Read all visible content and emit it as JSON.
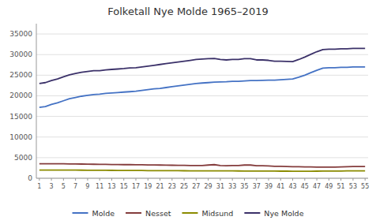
{
  "chart_data": {
    "type": "line",
    "title": "Folketall Nye Molde 1965–2019",
    "x": [
      1,
      2,
      3,
      4,
      5,
      6,
      7,
      8,
      9,
      10,
      11,
      12,
      13,
      14,
      15,
      16,
      17,
      18,
      19,
      20,
      21,
      22,
      23,
      24,
      25,
      26,
      27,
      28,
      29,
      30,
      31,
      32,
      33,
      34,
      35,
      36,
      37,
      38,
      39,
      40,
      41,
      42,
      43,
      44,
      45,
      46,
      47,
      48,
      49,
      50,
      51,
      52,
      53,
      54,
      55
    ],
    "xlim": [
      0.5,
      55.5
    ],
    "xticks": [
      1,
      3,
      5,
      7,
      9,
      11,
      13,
      15,
      17,
      19,
      21,
      23,
      25,
      27,
      29,
      31,
      33,
      35,
      37,
      39,
      41,
      43,
      45,
      47,
      49,
      51,
      53,
      55
    ],
    "ylim": [
      0,
      37500
    ],
    "yticks": [
      0,
      5000,
      10000,
      15000,
      20000,
      25000,
      30000,
      35000
    ],
    "grid": true,
    "legend": "bottom",
    "series": [
      {
        "name": "Molde",
        "color": "#4472C4",
        "values": [
          17200,
          17400,
          17900,
          18300,
          18800,
          19300,
          19600,
          19900,
          20100,
          20300,
          20400,
          20600,
          20700,
          20800,
          20900,
          21000,
          21100,
          21300,
          21500,
          21700,
          21800,
          22000,
          22200,
          22400,
          22600,
          22800,
          23000,
          23100,
          23200,
          23300,
          23350,
          23400,
          23500,
          23500,
          23600,
          23700,
          23700,
          23750,
          23800,
          23800,
          23900,
          24000,
          24100,
          24500,
          25000,
          25600,
          26200,
          26700,
          26800,
          26800,
          26900,
          26900,
          27000,
          27000,
          27000
        ]
      },
      {
        "name": "Nesset",
        "color": "#843C3C",
        "values": [
          3500,
          3500,
          3500,
          3500,
          3500,
          3480,
          3460,
          3440,
          3420,
          3400,
          3380,
          3360,
          3340,
          3320,
          3300,
          3300,
          3280,
          3260,
          3240,
          3220,
          3200,
          3180,
          3160,
          3140,
          3120,
          3100,
          3080,
          3100,
          3200,
          3300,
          3100,
          3050,
          3100,
          3100,
          3200,
          3200,
          3050,
          3050,
          3000,
          2900,
          2900,
          2850,
          2800,
          2800,
          2750,
          2750,
          2700,
          2700,
          2700,
          2700,
          2750,
          2800,
          2850,
          2850,
          2850
        ]
      },
      {
        "name": "Midsund",
        "color": "#8B8B00",
        "values": [
          2000,
          2000,
          2000,
          2000,
          2000,
          2000,
          1980,
          1960,
          1950,
          1940,
          1930,
          1920,
          1910,
          1900,
          1900,
          1900,
          1900,
          1880,
          1860,
          1850,
          1850,
          1850,
          1840,
          1830,
          1820,
          1810,
          1800,
          1800,
          1800,
          1790,
          1780,
          1780,
          1780,
          1770,
          1760,
          1760,
          1750,
          1750,
          1740,
          1730,
          1720,
          1720,
          1710,
          1710,
          1710,
          1710,
          1720,
          1730,
          1740,
          1750,
          1760,
          1780,
          1790,
          1800,
          1800
        ]
      },
      {
        "name": "Nye Molde",
        "color": "#3B3169",
        "values": [
          23000,
          23200,
          23700,
          24100,
          24600,
          25100,
          25400,
          25700,
          25900,
          26100,
          26100,
          26300,
          26400,
          26500,
          26600,
          26750,
          26800,
          27000,
          27200,
          27400,
          27600,
          27800,
          28000,
          28200,
          28400,
          28600,
          28800,
          28900,
          29000,
          29050,
          28800,
          28700,
          28800,
          28800,
          29000,
          29000,
          28700,
          28700,
          28600,
          28400,
          28400,
          28350,
          28300,
          28800,
          29400,
          30050,
          30700,
          31200,
          31300,
          31300,
          31400,
          31400,
          31500,
          31500,
          31500
        ]
      }
    ]
  }
}
